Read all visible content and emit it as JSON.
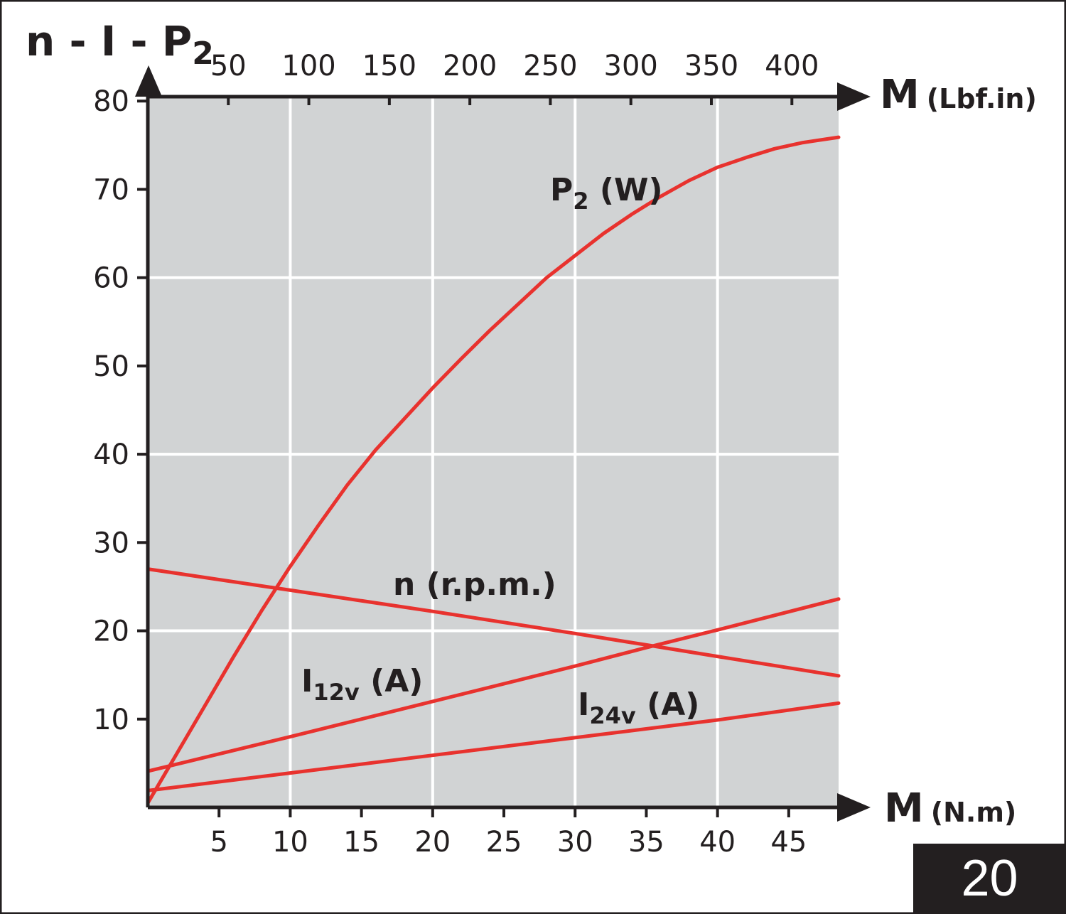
{
  "colors": {
    "plot_background": "#d1d3d4",
    "grid": "#ffffff",
    "curve": "#e8322e",
    "ink": "#231f20",
    "badge_background": "#231f20",
    "badge_text": "#ffffff"
  },
  "figure_number": "20",
  "chart_data": {
    "type": "line",
    "title": {
      "main": "n - I - P",
      "sub": "2"
    },
    "x_axis": {
      "label": "M",
      "unit": "(N.m)",
      "range": [
        0,
        48.5
      ],
      "ticks": [
        5,
        10,
        15,
        20,
        25,
        30,
        35,
        40,
        45
      ],
      "tick_labels": [
        "5",
        "10",
        "15",
        "20",
        "25",
        "30",
        "35",
        "40",
        "45"
      ],
      "grid_at": [
        10,
        20,
        30,
        40
      ]
    },
    "x2_axis": {
      "label": "M",
      "unit": "(Lbf.in)",
      "range": [
        0,
        429
      ],
      "ticks": [
        50,
        100,
        150,
        200,
        250,
        300,
        350,
        400
      ],
      "tick_labels": [
        "50",
        "100",
        "150",
        "200",
        "250",
        "300",
        "350",
        "400"
      ]
    },
    "y_axis": {
      "label": "",
      "range": [
        0,
        80.5
      ],
      "ticks": [
        10,
        20,
        30,
        40,
        50,
        60,
        70,
        80
      ],
      "tick_labels": [
        "10",
        "20",
        "30",
        "40",
        "50",
        "60",
        "70",
        "80"
      ],
      "grid_at": [
        20,
        40,
        60
      ]
    },
    "grid": true,
    "series": [
      {
        "name": "P2 (W)",
        "label_main": "P",
        "label_sub": "2",
        "label_tail": " (W)",
        "x": [
          0,
          2,
          4,
          6,
          8,
          10,
          12,
          14,
          16,
          18,
          20,
          22,
          24,
          26,
          28,
          30,
          32,
          34,
          36,
          38,
          40,
          42,
          44,
          46,
          48.5
        ],
        "y": [
          0.5,
          6,
          11.5,
          17,
          22.3,
          27.3,
          32,
          36.5,
          40.5,
          44,
          47.5,
          50.8,
          54,
          57,
          60,
          62.5,
          65,
          67.2,
          69.2,
          71,
          72.5,
          73.6,
          74.6,
          75.3,
          75.9
        ]
      },
      {
        "name": "n (r.p.m.)",
        "label_main": "n (r.p.m.)",
        "label_sub": "",
        "label_tail": "",
        "x": [
          0,
          10,
          20,
          30,
          35,
          40,
          48.5
        ],
        "y": [
          27,
          24.6,
          22.2,
          19.7,
          18.4,
          17.1,
          14.9
        ]
      },
      {
        "name": "I12v (A)",
        "label_main": "I",
        "label_sub": "12v",
        "label_tail": " (A)",
        "x": [
          0,
          10,
          20,
          30,
          35,
          40,
          48.5
        ],
        "y": [
          4.1,
          8,
          12,
          16,
          18.1,
          20.1,
          23.6
        ]
      },
      {
        "name": "I24v (A)",
        "label_main": "I",
        "label_sub": "24v",
        "label_tail": " (A)",
        "x": [
          0,
          10,
          20,
          30,
          40,
          48.5
        ],
        "y": [
          1.9,
          3.9,
          5.9,
          7.9,
          9.9,
          11.8
        ]
      }
    ]
  }
}
